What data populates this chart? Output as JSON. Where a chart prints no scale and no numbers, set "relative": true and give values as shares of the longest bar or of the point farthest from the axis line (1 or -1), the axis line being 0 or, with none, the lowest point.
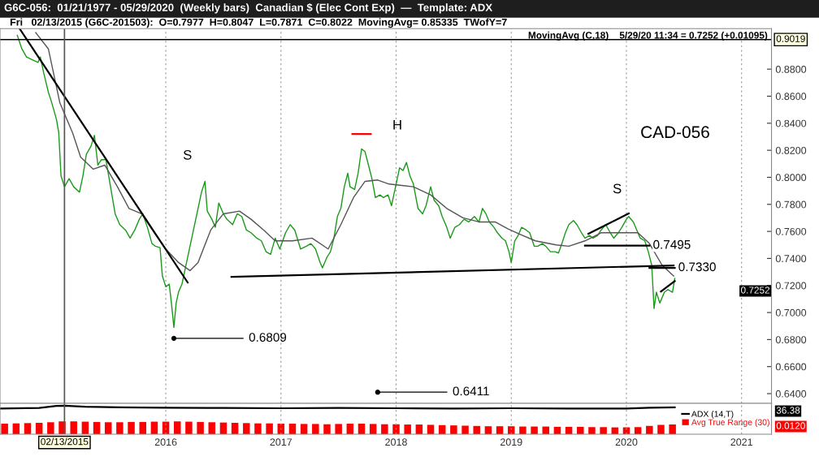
{
  "chart_data": [
    {
      "type": "line",
      "title": "G6C-056:  01/21/1977 - 05/29/2020  (Weekly bars)  Canadian $ (Elec Cont Exp)  —  Template: ADX",
      "subtitle": "Fri   02/13/2015 (G6C-201503):  O=0.7977  H=0.8047  L=0.7871  C=0.8022  MovingAvg= 0.85335  TWofY=7",
      "xlim": [
        2014.56,
        2021.26
      ],
      "xticks": [
        2016,
        2017,
        2018,
        2019,
        2020,
        2021
      ],
      "ylim": [
        0.6328,
        0.91
      ],
      "yticks": [
        {
          "value": 0.64,
          "label": "0.6400"
        },
        {
          "value": 0.66,
          "label": "0.6600"
        },
        {
          "value": 0.68,
          "label": "0.6800"
        },
        {
          "value": 0.7,
          "label": "0.7000"
        },
        {
          "value": 0.72,
          "label": "0.7200"
        },
        {
          "value": 0.74,
          "label": "0.7400"
        },
        {
          "value": 0.76,
          "label": "0.7600"
        },
        {
          "value": 0.78,
          "label": "0.7800"
        },
        {
          "value": 0.8,
          "label": "0.8000"
        },
        {
          "value": 0.82,
          "label": "0.8200"
        },
        {
          "value": 0.84,
          "label": "0.8400"
        },
        {
          "value": 0.86,
          "label": "0.8600"
        },
        {
          "value": 0.88,
          "label": "0.8800"
        }
      ],
      "tick_labels": "y",
      "grid": "x",
      "legend": false,
      "series": [
        {
          "color": "#1a9a1a",
          "x": [
            2014.71,
            2014.75,
            2014.79,
            2014.84,
            2014.89,
            2014.91,
            2014.94,
            2014.98,
            2015.01,
            2015.05,
            2015.07,
            2015.09,
            2015.12,
            2015.16,
            2015.2,
            2015.25,
            2015.28,
            2015.31,
            2015.35,
            2015.38,
            2015.41,
            2015.44,
            2015.48,
            2015.52,
            2015.56,
            2015.6,
            2015.65,
            2015.69,
            2015.73,
            2015.77,
            2015.8,
            2015.84,
            2015.88,
            2015.91,
            2015.95,
            2015.97,
            2016.0,
            2016.03,
            2016.05,
            2016.07,
            2016.09,
            2016.11,
            2016.14,
            2016.17,
            2016.2,
            2016.23,
            2016.26,
            2016.28,
            2016.31,
            2016.34,
            2016.36,
            2016.4,
            2016.43,
            2016.46,
            2016.5,
            2016.53,
            2016.58,
            2016.62,
            2016.66,
            2016.7,
            2016.74,
            2016.79,
            2016.83,
            2016.87,
            2016.91,
            2016.95,
            2016.99,
            2017.04,
            2017.08,
            2017.12,
            2017.17,
            2017.22,
            2017.26,
            2017.3,
            2017.34,
            2017.36,
            2017.4,
            2017.43,
            2017.46,
            2017.49,
            2017.52,
            2017.55,
            2017.58,
            2017.6,
            2017.64,
            2017.67,
            2017.7,
            2017.73,
            2017.76,
            2017.79,
            2017.82,
            2017.86,
            2017.89,
            2017.93,
            2017.96,
            2018.0,
            2018.03,
            2018.06,
            2018.09,
            2018.12,
            2018.15,
            2018.19,
            2018.23,
            2018.26,
            2018.3,
            2018.33,
            2018.37,
            2018.4,
            2018.44,
            2018.47,
            2018.51,
            2018.55,
            2018.59,
            2018.63,
            2018.68,
            2018.72,
            2018.75,
            2018.78,
            2018.81,
            2018.85,
            2018.88,
            2018.92,
            2018.95,
            2018.98,
            2019.0,
            2019.03,
            2019.06,
            2019.09,
            2019.13,
            2019.16,
            2019.2,
            2019.23,
            2019.27,
            2019.3,
            2019.34,
            2019.38,
            2019.41,
            2019.44,
            2019.47,
            2019.5,
            2019.54,
            2019.57,
            2019.61,
            2019.64,
            2019.68,
            2019.71,
            2019.75,
            2019.78,
            2019.82,
            2019.86,
            2019.89,
            2019.93,
            2019.96,
            2020.0,
            2020.02,
            2020.06,
            2020.09,
            2020.12,
            2020.16,
            2020.19,
            2020.22,
            2020.24,
            2020.26,
            2020.29,
            2020.33,
            2020.36,
            2020.4,
            2020.42
          ],
          "values": [
            0.905,
            0.895,
            0.889,
            0.887,
            0.885,
            0.889,
            0.877,
            0.863,
            0.855,
            0.843,
            0.833,
            0.801,
            0.793,
            0.799,
            0.793,
            0.789,
            0.801,
            0.817,
            0.823,
            0.831,
            0.809,
            0.813,
            0.813,
            0.793,
            0.773,
            0.765,
            0.761,
            0.755,
            0.761,
            0.769,
            0.773,
            0.763,
            0.751,
            0.749,
            0.748,
            0.727,
            0.719,
            0.721,
            0.706,
            0.689,
            0.707,
            0.715,
            0.721,
            0.733,
            0.745,
            0.757,
            0.769,
            0.777,
            0.789,
            0.797,
            0.775,
            0.769,
            0.763,
            0.781,
            0.773,
            0.769,
            0.765,
            0.773,
            0.771,
            0.761,
            0.759,
            0.755,
            0.753,
            0.745,
            0.743,
            0.755,
            0.747,
            0.759,
            0.765,
            0.761,
            0.747,
            0.749,
            0.751,
            0.747,
            0.737,
            0.733,
            0.741,
            0.745,
            0.755,
            0.771,
            0.777,
            0.793,
            0.803,
            0.793,
            0.791,
            0.803,
            0.821,
            0.819,
            0.809,
            0.799,
            0.785,
            0.787,
            0.785,
            0.787,
            0.779,
            0.795,
            0.807,
            0.805,
            0.811,
            0.801,
            0.795,
            0.777,
            0.773,
            0.779,
            0.793,
            0.783,
            0.779,
            0.771,
            0.763,
            0.755,
            0.763,
            0.765,
            0.769,
            0.767,
            0.771,
            0.767,
            0.777,
            0.773,
            0.767,
            0.763,
            0.759,
            0.755,
            0.753,
            0.745,
            0.737,
            0.753,
            0.757,
            0.763,
            0.761,
            0.759,
            0.749,
            0.749,
            0.751,
            0.749,
            0.745,
            0.745,
            0.744,
            0.751,
            0.759,
            0.765,
            0.768,
            0.765,
            0.759,
            0.755,
            0.757,
            0.755,
            0.757,
            0.761,
            0.765,
            0.759,
            0.755,
            0.759,
            0.763,
            0.769,
            0.771,
            0.767,
            0.761,
            0.755,
            0.753,
            0.745,
            0.735,
            0.703,
            0.715,
            0.707,
            0.715,
            0.717,
            0.715,
            0.7252
          ]
        },
        {
          "color": "#555555",
          "x": [
            2014.87,
            2014.98,
            2015.08,
            2015.19,
            2015.26,
            2015.37,
            2015.47,
            2015.58,
            2015.68,
            2015.79,
            2015.9,
            2016.0,
            2016.11,
            2016.21,
            2016.28,
            2016.39,
            2016.5,
            2016.64,
            2016.74,
            2016.85,
            2016.95,
            2017.1,
            2017.27,
            2017.41,
            2017.52,
            2017.63,
            2017.73,
            2017.84,
            2017.94,
            2018.05,
            2018.15,
            2018.3,
            2018.44,
            2018.58,
            2018.72,
            2018.86,
            2018.97,
            2019.07,
            2019.21,
            2019.39,
            2019.5,
            2019.64,
            2019.78,
            2019.99,
            2020.1,
            2020.2,
            2020.31,
            2020.41
          ],
          "values": [
            0.907,
            0.895,
            0.855,
            0.833,
            0.815,
            0.806,
            0.809,
            0.793,
            0.777,
            0.773,
            0.759,
            0.747,
            0.737,
            0.731,
            0.737,
            0.761,
            0.773,
            0.775,
            0.769,
            0.761,
            0.753,
            0.753,
            0.755,
            0.747,
            0.765,
            0.785,
            0.797,
            0.798,
            0.795,
            0.794,
            0.793,
            0.787,
            0.777,
            0.77,
            0.767,
            0.767,
            0.762,
            0.758,
            0.753,
            0.75,
            0.749,
            0.753,
            0.759,
            0.759,
            0.759,
            0.751,
            0.735,
            0.727
          ]
        },
        {
          "color": "#000000",
          "x": [
            2014.73,
            2016.19
          ],
          "values": [
            0.91,
            0.7222
          ]
        },
        {
          "color": "#000000",
          "x": [
            2016.57,
            2020.41
          ],
          "values": [
            0.7264,
            0.7348
          ]
        },
        {
          "color": "#000000",
          "x": [
            2019.67,
            2020.02
          ],
          "values": [
            0.7582,
            0.7732
          ]
        },
        {
          "color": "#000000",
          "x": [
            2019.64,
            2020.2
          ],
          "values": [
            0.7495,
            0.7495
          ]
        },
        {
          "color": "#000000",
          "x": [
            2020.2,
            2020.42
          ],
          "values": [
            0.733,
            0.733
          ]
        },
        {
          "color": "#000000",
          "x": [
            2020.3,
            2020.42,
            2020.42
          ],
          "values": [
            0.7155,
            0.7232,
            0.7232
          ]
        },
        {
          "color": "#ff0000",
          "x": [
            2017.62,
            2017.78
          ],
          "values": [
            0.832,
            0.832
          ]
        }
      ],
      "ref_lines": [
        {
          "axis": "y",
          "value": 0.9019,
          "label": "0.9019",
          "color": "#000000"
        },
        {
          "axis": "x",
          "value": 2015.12,
          "label": "02/13/2015",
          "color": "#555555"
        }
      ],
      "annotations": [
        "MovingAvg (C,18)    5/29/20 11:34 = 0.7252 (+0.01095)",
        "CAD-056",
        "S",
        "H",
        "S",
        {
          "text": "0.6809",
          "x": 2016.07,
          "y": 0.6809
        },
        {
          "text": "0.6411",
          "x": 2017.84,
          "y": 0.6411
        },
        {
          "text": "0.7495",
          "x": 2020.2,
          "y": 0.7495
        },
        {
          "text": "0.7330",
          "x": 2020.42,
          "y": 0.733
        },
        "0.7252"
      ]
    },
    {
      "type": "line",
      "relative": true,
      "tick_labels": "x",
      "grid": "x",
      "legend": "right",
      "annotations": [
        "36.38",
        "0.0120"
      ],
      "xlim": [
        2014.56,
        2021.26
      ],
      "xticks": [
        2016,
        2017,
        2018,
        2019,
        2020,
        2021
      ],
      "series": [
        {
          "name": "Avg True Range (30)",
          "type": "bar",
          "color": "#ff0000",
          "x": [
            2014.6,
            2014.7,
            2014.8,
            2014.9,
            2015.0,
            2015.1,
            2015.2,
            2015.3,
            2015.4,
            2015.5,
            2015.6,
            2015.7,
            2015.8,
            2015.9,
            2016.0,
            2016.1,
            2016.2,
            2016.3,
            2016.4,
            2016.5,
            2016.6,
            2016.7,
            2016.8,
            2016.9,
            2017.0,
            2017.1,
            2017.2,
            2017.3,
            2017.4,
            2017.5,
            2017.6,
            2017.7,
            2017.8,
            2017.9,
            2018.0,
            2018.1,
            2018.2,
            2018.3,
            2018.4,
            2018.5,
            2018.6,
            2018.7,
            2018.8,
            2018.9,
            2019.0,
            2019.1,
            2019.2,
            2019.3,
            2019.4,
            2019.5,
            2019.6,
            2019.7,
            2019.8,
            2019.9,
            2020.0,
            2020.1,
            2020.2,
            2020.3,
            2020.4
          ],
          "values": [
            0.37,
            0.38,
            0.39,
            0.4,
            0.42,
            0.45,
            0.45,
            0.44,
            0.43,
            0.42,
            0.42,
            0.43,
            0.43,
            0.44,
            0.44,
            0.45,
            0.44,
            0.43,
            0.42,
            0.41,
            0.4,
            0.39,
            0.38,
            0.38,
            0.37,
            0.37,
            0.36,
            0.36,
            0.35,
            0.36,
            0.37,
            0.37,
            0.36,
            0.35,
            0.35,
            0.34,
            0.34,
            0.33,
            0.32,
            0.31,
            0.3,
            0.29,
            0.28,
            0.28,
            0.28,
            0.27,
            0.27,
            0.27,
            0.26,
            0.26,
            0.26,
            0.25,
            0.25,
            0.24,
            0.24,
            0.25,
            0.29,
            0.33,
            0.34
          ]
        },
        {
          "name": "ADX (14,T)",
          "color": "#000000",
          "x": [
            2014.56,
            2014.9,
            2015.05,
            2015.12,
            2015.3,
            2015.6,
            2016.0,
            2016.5,
            2017.0,
            2017.5,
            2018.0,
            2018.5,
            2019.0,
            2019.5,
            2020.0,
            2020.2,
            2020.42
          ],
          "values": [
            0.9,
            0.92,
            0.99,
            1.0,
            0.96,
            0.94,
            0.93,
            0.92,
            0.91,
            0.92,
            0.91,
            0.9,
            0.91,
            0.9,
            0.9,
            0.93,
            0.94
          ]
        }
      ]
    }
  ]
}
